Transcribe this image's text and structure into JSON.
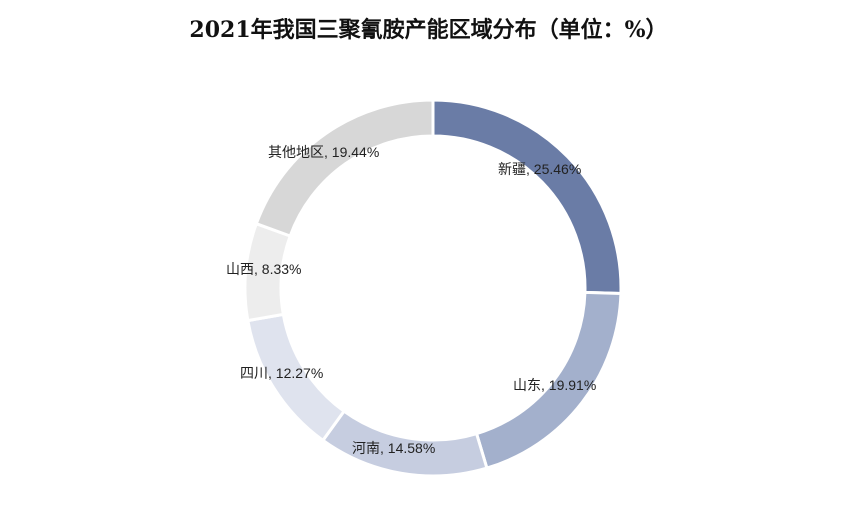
{
  "chart_data": {
    "type": "pie",
    "title": "2021年我国三聚氰胺产能区域分布（单位：%）",
    "categories": [
      "新疆",
      "山东",
      "河南",
      "四川",
      "山西",
      "其他地区"
    ],
    "values": [
      25.46,
      19.91,
      14.58,
      12.27,
      8.33,
      19.44
    ],
    "labels": [
      "新疆, 25.46%",
      "山东, 19.91%",
      "河南, 14.58%",
      "四川, 12.27%",
      "山西, 8.33%",
      "其他地区, 19.44%"
    ],
    "colors": [
      "#6a7ca6",
      "#a3b0cc",
      "#c6cde0",
      "#dfe3ee",
      "#ededed",
      "#d7d7d7"
    ],
    "donut": true,
    "legend": "none"
  }
}
